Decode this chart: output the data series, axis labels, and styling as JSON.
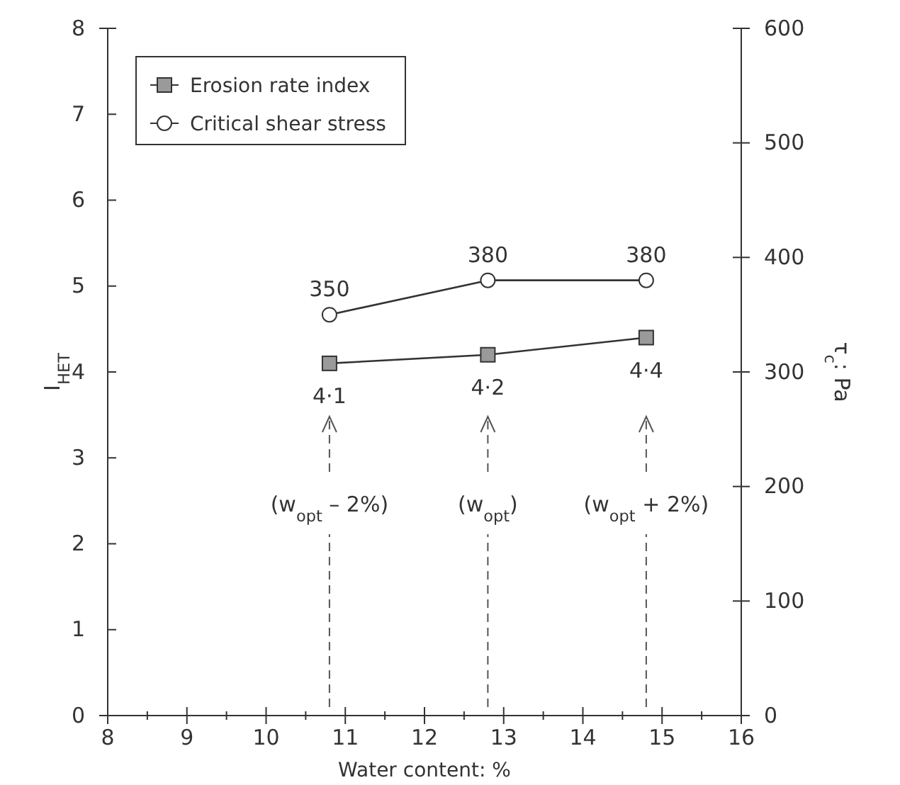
{
  "chart_data": {
    "type": "line",
    "xlabel": "Water content: %",
    "ylabel": "I$_{HET}$",
    "y2label": "τ$_{c}$: Pa",
    "x": [
      10.8,
      12.8,
      14.8
    ],
    "series": [
      {
        "name": "Erosion rate index",
        "color": "#9a9a9a",
        "marker": "square",
        "values": [
          4.1,
          4.2,
          4.4
        ],
        "value_labels": [
          "4·1",
          "4·2",
          "4·4"
        ]
      },
      {
        "name": "Critical shear stress",
        "color": "#ffffff",
        "marker": "circle",
        "axis": "y2",
        "values": [
          350,
          380,
          380
        ],
        "value_labels": [
          "350",
          "380",
          "380"
        ]
      }
    ],
    "xlim": [
      8,
      16
    ],
    "xticks": [
      8,
      {
        "value": 8.5,
        "label": null
      },
      9,
      {
        "value": 9.5,
        "label": null
      },
      10,
      {
        "value": 10.5,
        "label": null
      },
      11,
      {
        "value": 11.5,
        "label": null
      },
      12,
      {
        "value": 12.5,
        "label": null
      },
      13,
      {
        "value": 13.5,
        "label": null
      },
      14,
      {
        "value": 14.5,
        "label": null
      },
      15,
      {
        "value": 15.5,
        "label": null
      },
      16
    ],
    "ylim": [
      0,
      8
    ],
    "yticks": [
      0,
      1,
      2,
      3,
      4,
      5,
      6,
      7,
      8
    ],
    "y2lim": [
      0,
      600
    ],
    "y2ticks": [
      0,
      100,
      200,
      300,
      400,
      500,
      600
    ],
    "annotations": [
      "(w$_{opt}$ – 2%)",
      "(w$_{opt}$)",
      "(w$_{opt}$ + 2%)"
    ],
    "grid": false,
    "legend": "top left"
  }
}
